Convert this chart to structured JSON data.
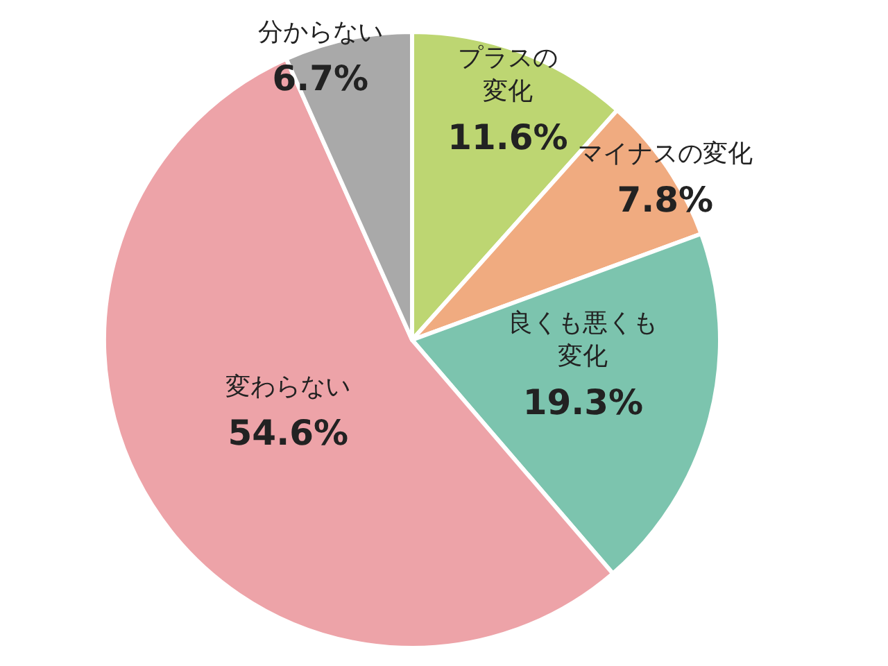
{
  "chart_data": {
    "type": "pie",
    "categories": [
      "プラスの変化",
      "マイナスの変化",
      "良くも悪くも変化",
      "変わらない",
      "分からない"
    ],
    "values": [
      11.6,
      7.8,
      19.3,
      54.6,
      6.7
    ],
    "value_labels": [
      "11.6%",
      "7.8%",
      "19.3%",
      "54.6%",
      "6.7%"
    ],
    "colors": [
      "#bdd672",
      "#f0ab80",
      "#7cc4ae",
      "#eda3a8",
      "#a9a9a9"
    ]
  }
}
